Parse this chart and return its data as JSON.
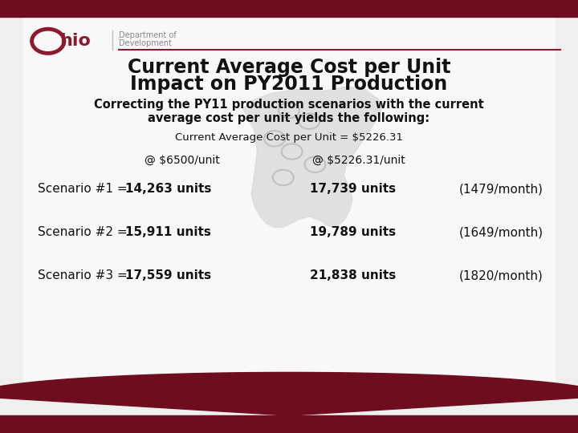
{
  "title_line1": "Current Average Cost per Unit",
  "title_line2": "Impact on PY2011 Production",
  "subtitle_line1": "Correcting the PY11 production scenarios with the current",
  "subtitle_line2": "average cost per unit yields the following:",
  "cost_line": "Current Average Cost per Unit = $5226.31",
  "col1_header": "@ $6500/unit",
  "col2_header": "@ $5226.31/unit",
  "scenarios": [
    {
      "label_normal": "Scenario #1 = ",
      "label_bold": "14,263 units",
      "col1": "17,739 units",
      "col2": "(1479/month)"
    },
    {
      "label_normal": "Scenario #2 = ",
      "label_bold": "15,911 units",
      "col1": "19,789 units",
      "col2": "(1649/month)"
    },
    {
      "label_normal": "Scenario #3 = ",
      "label_bold": "17,559 units",
      "col1": "21,838 units",
      "col2": "(1820/month)"
    }
  ],
  "bg_color": "#efefef",
  "card_color": "#f0f0f0",
  "header_bar_color": "#6e0d1e",
  "footer_bar_color": "#6e0d1e",
  "title_color": "#111111",
  "ohio_red": "#8c1a2e",
  "text_color": "#111111",
  "subtitle_color": "#111111",
  "cost_line_color": "#111111",
  "divider_color": "#cccccc",
  "ohio_map_color": "#d9d9d9",
  "ohio_circle_color": "#c0c0c0",
  "dept_text_color": "#888888"
}
